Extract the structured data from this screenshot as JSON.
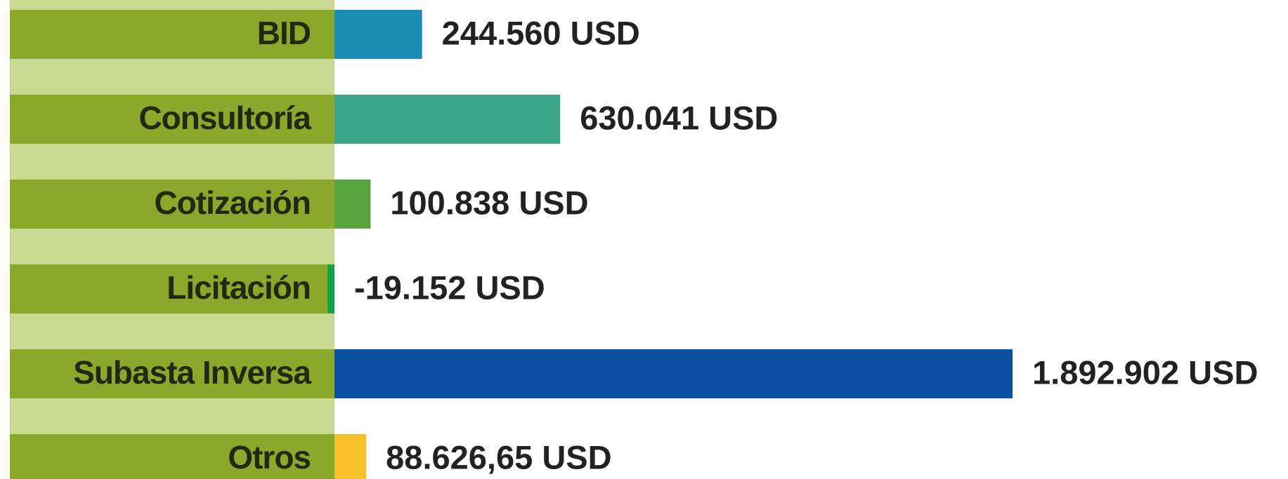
{
  "chart_data": {
    "type": "bar",
    "orientation": "horizontal",
    "categories": [
      "BID",
      "Consultoría",
      "Cotización",
      "Licitación",
      "Subasta Inversa",
      "Otros"
    ],
    "values": [
      244560,
      630041,
      100838,
      -19152,
      1892902,
      88626.65
    ],
    "value_labels": [
      "244.560 USD",
      "630.041 USD",
      "100.838 USD",
      "-19.152 USD",
      "1.892.902 USD",
      "88.626,65 USD"
    ],
    "colors": [
      "#1a8db5",
      "#3aa487",
      "#5ba540",
      "#14a046",
      "#0b4fa0",
      "#f7c02b"
    ]
  }
}
